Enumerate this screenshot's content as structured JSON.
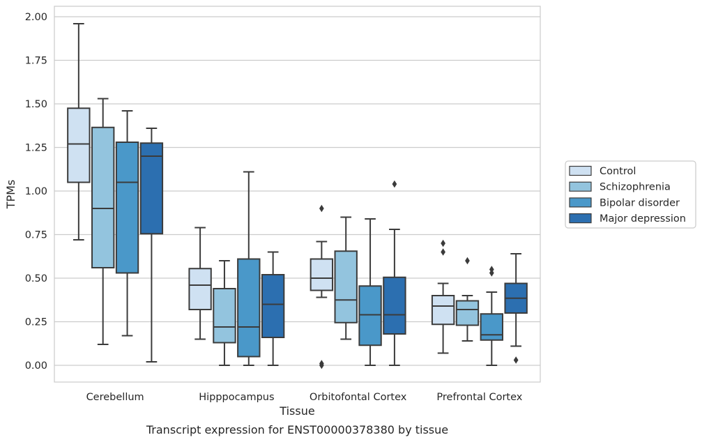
{
  "caption": "Transcript expression for ENST00000378380 by tissue",
  "chart_data": {
    "type": "box",
    "xlabel": "Tissue",
    "ylabel": "TPMs",
    "ylim": [
      -0.1,
      2.06
    ],
    "yticks": [
      "0.00",
      "0.25",
      "0.50",
      "0.75",
      "1.00",
      "1.25",
      "1.50",
      "1.75",
      "2.00"
    ],
    "grid": true,
    "legend_position": "right",
    "categories": [
      "Cerebellum",
      "Hipppocampus",
      "Orbitofontal Cortex",
      "Prefrontal Cortex"
    ],
    "series": [
      {
        "name": "Control",
        "color": "#cfe1f2",
        "boxes": [
          {
            "whisker_low": 0.72,
            "q1": 1.05,
            "median": 1.27,
            "q3": 1.475,
            "whisker_high": 1.96,
            "outliers": []
          },
          {
            "whisker_low": 0.15,
            "q1": 0.32,
            "median": 0.46,
            "q3": 0.555,
            "whisker_high": 0.79,
            "outliers": []
          },
          {
            "whisker_low": 0.39,
            "q1": 0.43,
            "median": 0.5,
            "q3": 0.61,
            "whisker_high": 0.71,
            "outliers": [
              0.9,
              0.01,
              0.0
            ]
          },
          {
            "whisker_low": 0.07,
            "q1": 0.235,
            "median": 0.34,
            "q3": 0.4,
            "whisker_high": 0.47,
            "outliers": [
              0.7,
              0.65
            ]
          }
        ]
      },
      {
        "name": "Schizophrenia",
        "color": "#93c4de",
        "boxes": [
          {
            "whisker_low": 0.12,
            "q1": 0.56,
            "median": 0.9,
            "q3": 1.365,
            "whisker_high": 1.53,
            "outliers": []
          },
          {
            "whisker_low": 0.0,
            "q1": 0.13,
            "median": 0.22,
            "q3": 0.44,
            "whisker_high": 0.6,
            "outliers": []
          },
          {
            "whisker_low": 0.15,
            "q1": 0.245,
            "median": 0.375,
            "q3": 0.655,
            "whisker_high": 0.85,
            "outliers": []
          },
          {
            "whisker_low": 0.14,
            "q1": 0.23,
            "median": 0.32,
            "q3": 0.37,
            "whisker_high": 0.4,
            "outliers": [
              0.6
            ]
          }
        ]
      },
      {
        "name": "Bipolar disorder",
        "color": "#4a98c9",
        "boxes": [
          {
            "whisker_low": 0.17,
            "q1": 0.53,
            "median": 1.05,
            "q3": 1.28,
            "whisker_high": 1.46,
            "outliers": []
          },
          {
            "whisker_low": 0.0,
            "q1": 0.05,
            "median": 0.22,
            "q3": 0.61,
            "whisker_high": 1.11,
            "outliers": []
          },
          {
            "whisker_low": 0.0,
            "q1": 0.115,
            "median": 0.29,
            "q3": 0.455,
            "whisker_high": 0.84,
            "outliers": []
          },
          {
            "whisker_low": 0.0,
            "q1": 0.145,
            "median": 0.175,
            "q3": 0.295,
            "whisker_high": 0.42,
            "outliers": [
              0.55,
              0.53
            ]
          }
        ]
      },
      {
        "name": "Major depression",
        "color": "#2c6fb0",
        "boxes": [
          {
            "whisker_low": 0.02,
            "q1": 0.755,
            "median": 1.2,
            "q3": 1.275,
            "whisker_high": 1.36,
            "outliers": []
          },
          {
            "whisker_low": 0.0,
            "q1": 0.16,
            "median": 0.35,
            "q3": 0.52,
            "whisker_high": 0.65,
            "outliers": []
          },
          {
            "whisker_low": 0.0,
            "q1": 0.18,
            "median": 0.29,
            "q3": 0.505,
            "whisker_high": 0.78,
            "outliers": [
              1.04
            ]
          },
          {
            "whisker_low": 0.11,
            "q1": 0.3,
            "median": 0.385,
            "q3": 0.47,
            "whisker_high": 0.64,
            "outliers": [
              0.03
            ]
          }
        ]
      }
    ]
  }
}
